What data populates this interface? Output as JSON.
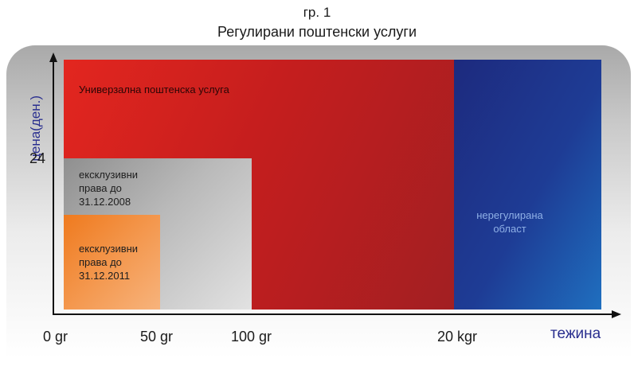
{
  "figure": {
    "number": "гр. 1",
    "title": "Регулирани поштенски услуги"
  },
  "axes": {
    "y_title": "цена(ден.)",
    "x_title": "тежина",
    "y_ticks": [
      "24"
    ],
    "x_ticks": [
      "0 gr",
      "50 gr",
      "100 gr",
      "20 kgr"
    ]
  },
  "regions": {
    "universal": {
      "label": "Универзална поштенска услуга",
      "color": "#c51e1e"
    },
    "exclusive_2008": {
      "line1": "ексклузивни",
      "line2": "права до",
      "line3": "31.12.2008",
      "color": "#b9b9b9"
    },
    "exclusive_2011": {
      "line1": "ексклузивни",
      "line2": "права до",
      "line3": "31.12.2011",
      "color": "#f49a52"
    },
    "unregulated": {
      "line1": "нерегулирана",
      "line2": "област",
      "color": "#1e3c95"
    }
  }
}
